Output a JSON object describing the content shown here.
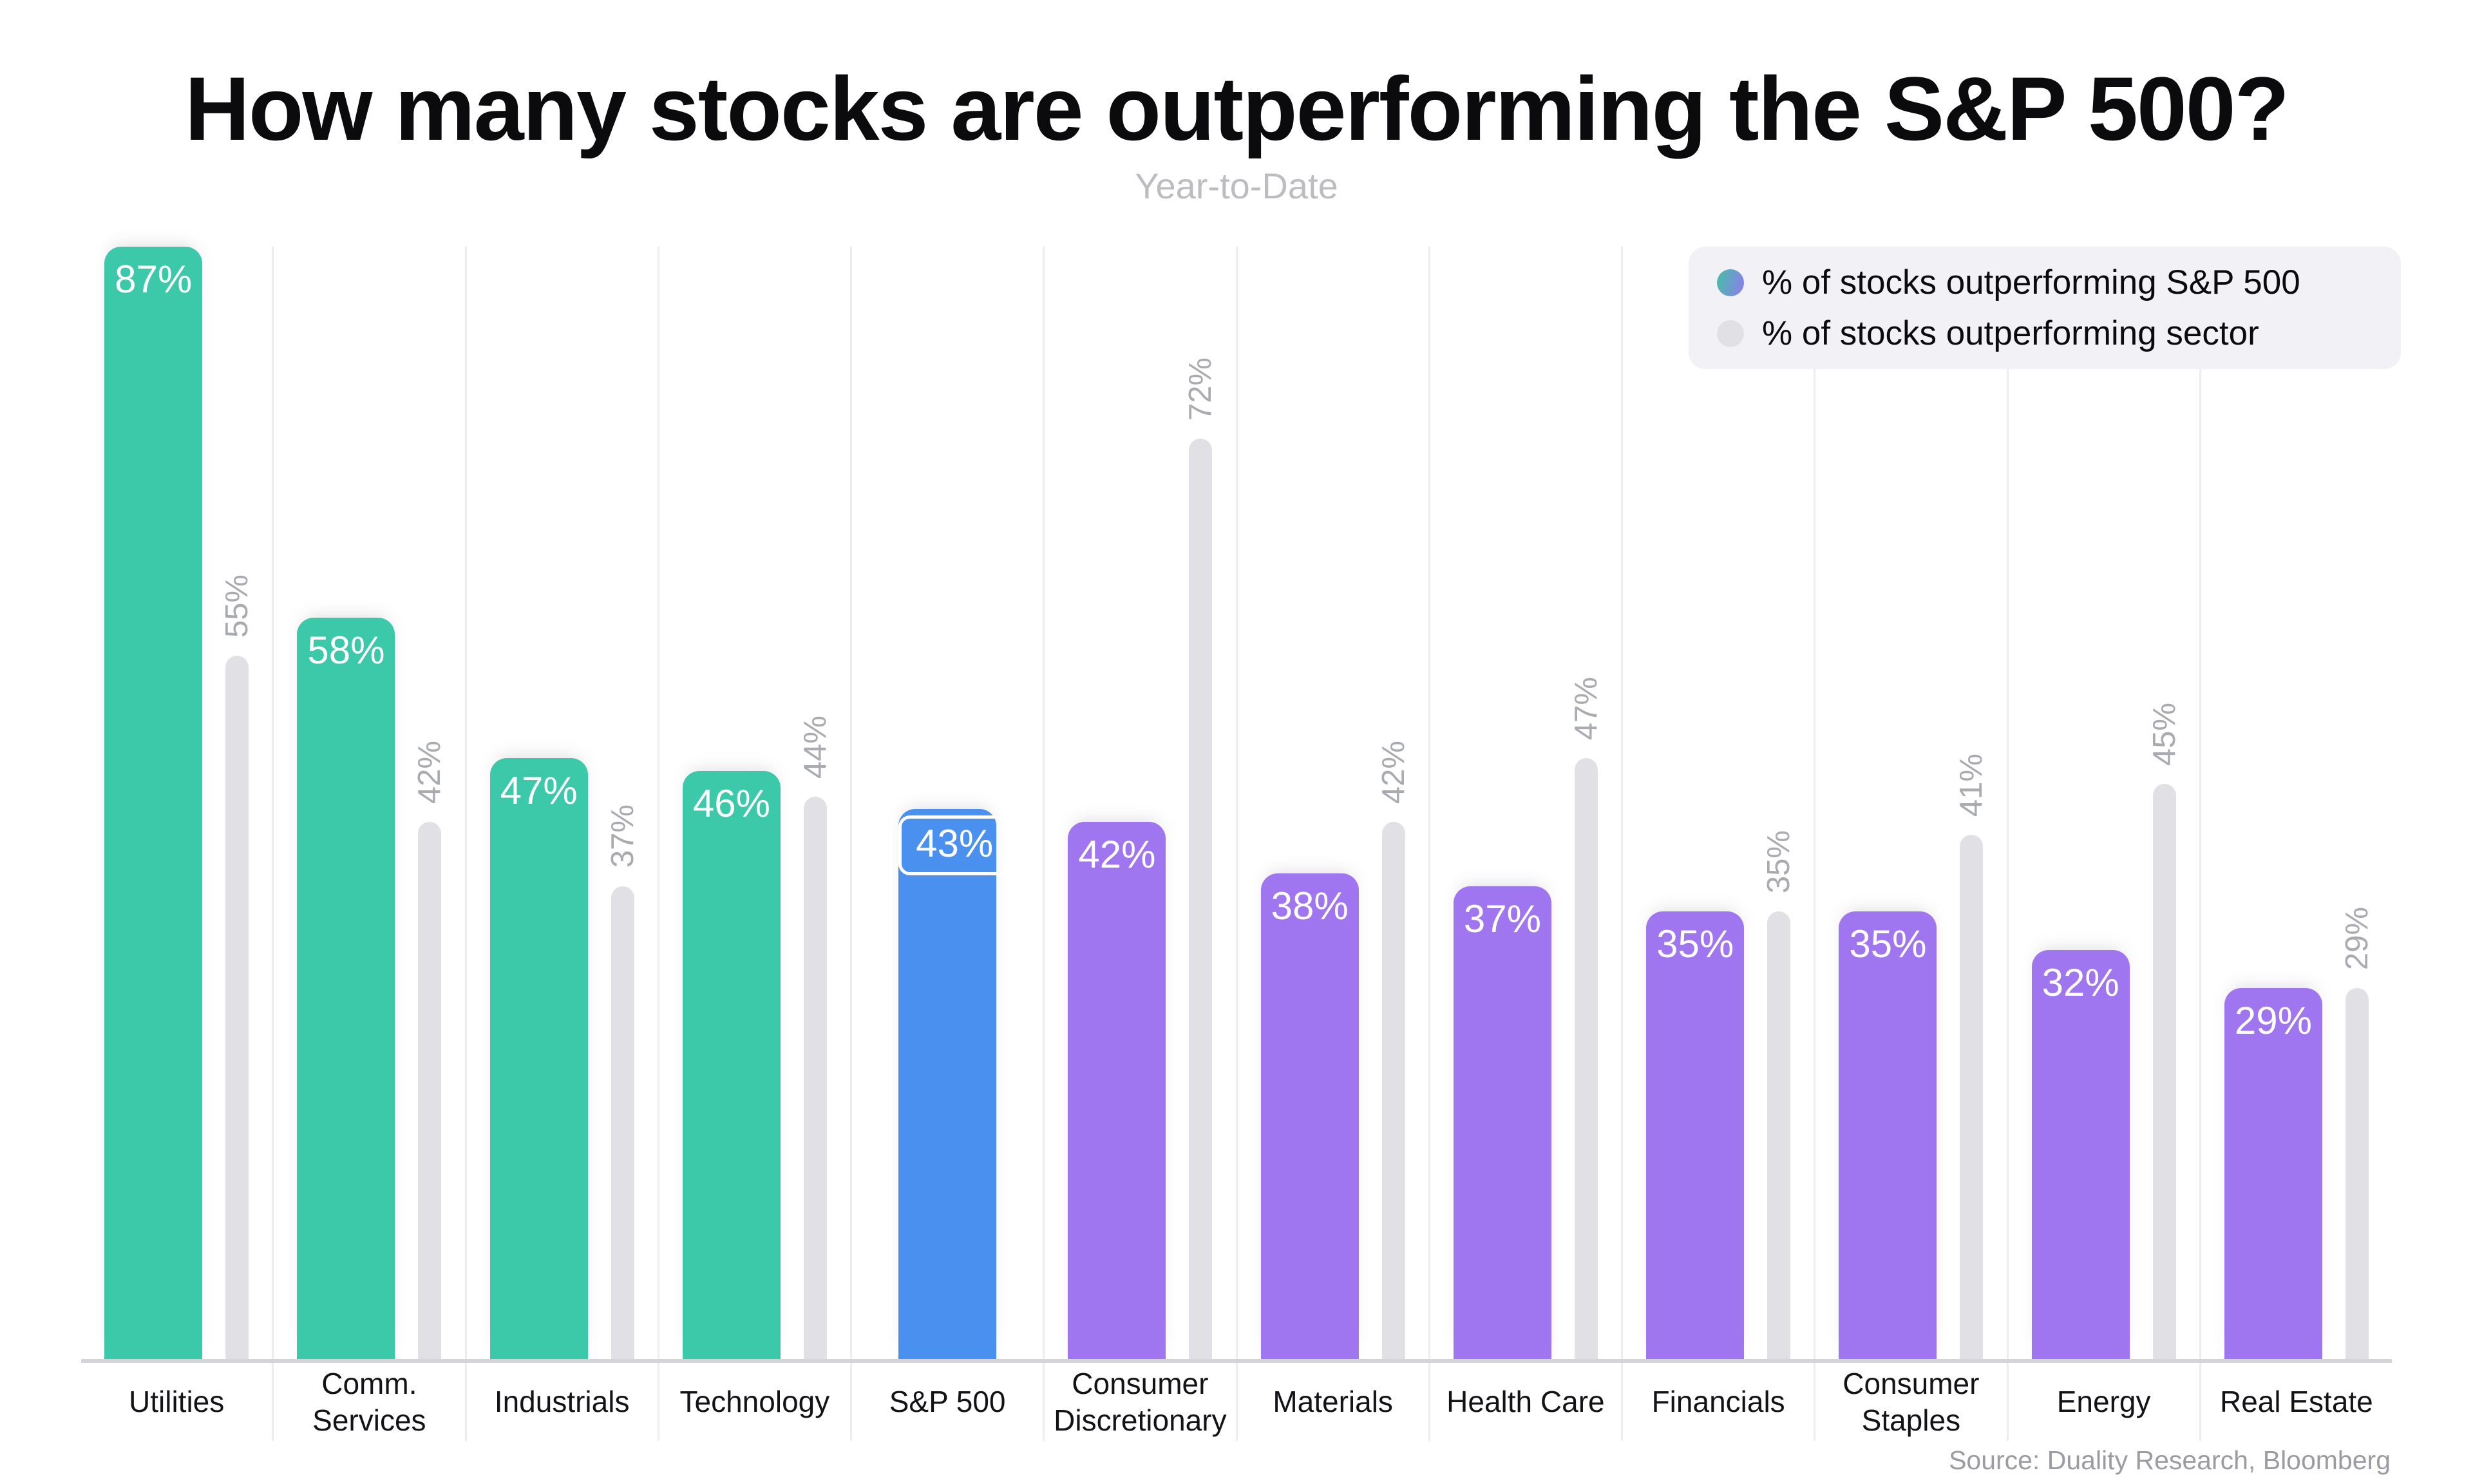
{
  "header": {
    "title": "How many stocks are outperforming the S&P 500?",
    "subtitle": "Year-to-Date"
  },
  "source_note": "Source: Duality Research, Bloomberg",
  "palette": {
    "teal": "#3CC9A9",
    "blue": "#4A90EF",
    "purple": "#9F76EF",
    "graybar": "#E1E1E5",
    "grid": "#EDEDEF",
    "axis": "#D5D5D9",
    "muted": "#AAABB1",
    "subtle": "#BDBDC1",
    "source": "#9B9BA2",
    "legendbg": "#F2F2F6",
    "ink": "#0B0B0E",
    "dotfrom": "#45C0A5",
    "dotto": "#8F7BEE"
  },
  "chart_data": {
    "type": "bar",
    "unit": "%",
    "title": "How many stocks are outperforming the S&P 500?",
    "subtitle": "Year-to-Date",
    "categories": [
      "Utilities",
      "Comm.\nServices",
      "Industrials",
      "Technology",
      "S&P 500",
      "Consumer\nDiscretionary",
      "Materials",
      "Health Care",
      "Financials",
      "Consumer\nStaples",
      "Energy",
      "Real Estate"
    ],
    "series": [
      {
        "name": "% of stocks outperforming S&P 500",
        "values": [
          87,
          58,
          47,
          46,
          43,
          42,
          38,
          37,
          35,
          35,
          32,
          29
        ]
      },
      {
        "name": "% of stocks outperforming sector",
        "values": [
          55,
          42,
          37,
          44,
          null,
          72,
          42,
          47,
          35,
          41,
          45,
          29
        ]
      }
    ],
    "bar_colors": [
      "teal",
      "teal",
      "teal",
      "teal",
      "blue",
      "purple",
      "purple",
      "purple",
      "purple",
      "purple",
      "purple",
      "purple"
    ],
    "highlight_index": 4,
    "ylim": [
      0,
      87
    ],
    "grid": "vertical-separators-only",
    "legend_position": "top-right"
  }
}
